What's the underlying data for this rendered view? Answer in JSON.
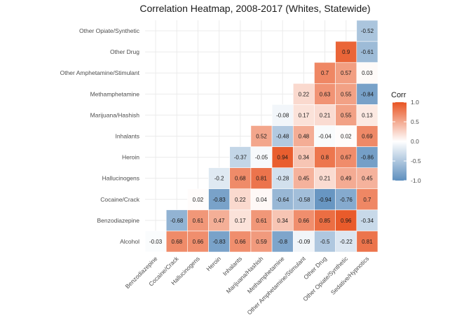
{
  "chart_data": {
    "type": "heatmap",
    "title": "Correlation Heatmap, 2008-2017 (Whites, Statewide)",
    "x_categories": [
      "Benzodiazepine",
      "Cocaine/Crack",
      "Hallucinogens",
      "Heroin",
      "Inhalants",
      "Marijuana/Hashish",
      "Methamphetamine",
      "Other Amphetamine/Stimulant",
      "Other Drug",
      "Other Opiate/Synthetic",
      "Sedative/Hypnotics"
    ],
    "y_categories": [
      "Alcohol",
      "Benzodiazepine",
      "Cocaine/Crack",
      "Hallucinogens",
      "Heroin",
      "Inhalants",
      "Marijuana/Hashish",
      "Methamphetamine",
      "Other Amphetamine/Stimulant",
      "Other Drug",
      "Other Opiate/Synthetic"
    ],
    "cells": [
      {
        "x": "Benzodiazepine",
        "y": "Alcohol",
        "value": -0.03,
        "label": "-0.03"
      },
      {
        "x": "Cocaine/Crack",
        "y": "Alcohol",
        "value": 0.68,
        "label": "0.68"
      },
      {
        "x": "Hallucinogens",
        "y": "Alcohol",
        "value": 0.66,
        "label": "0.66"
      },
      {
        "x": "Heroin",
        "y": "Alcohol",
        "value": -0.83,
        "label": "-0.83"
      },
      {
        "x": "Inhalants",
        "y": "Alcohol",
        "value": 0.66,
        "label": "0.66"
      },
      {
        "x": "Marijuana/Hashish",
        "y": "Alcohol",
        "value": 0.59,
        "label": "0.59"
      },
      {
        "x": "Methamphetamine",
        "y": "Alcohol",
        "value": -0.8,
        "label": "-0.8"
      },
      {
        "x": "Other Amphetamine/Stimulant",
        "y": "Alcohol",
        "value": -0.09,
        "label": "-0.09"
      },
      {
        "x": "Other Drug",
        "y": "Alcohol",
        "value": -0.5,
        "label": "-0.5"
      },
      {
        "x": "Other Opiate/Synthetic",
        "y": "Alcohol",
        "value": -0.22,
        "label": "-0.22"
      },
      {
        "x": "Sedative/Hypnotics",
        "y": "Alcohol",
        "value": 0.81,
        "label": "0.81"
      },
      {
        "x": "Cocaine/Crack",
        "y": "Benzodiazepine",
        "value": -0.68,
        "label": "-0.68"
      },
      {
        "x": "Hallucinogens",
        "y": "Benzodiazepine",
        "value": 0.61,
        "label": "0.61"
      },
      {
        "x": "Heroin",
        "y": "Benzodiazepine",
        "value": 0.47,
        "label": "0.47"
      },
      {
        "x": "Inhalants",
        "y": "Benzodiazepine",
        "value": 0.17,
        "label": "0.17"
      },
      {
        "x": "Marijuana/Hashish",
        "y": "Benzodiazepine",
        "value": 0.61,
        "label": "0.61"
      },
      {
        "x": "Methamphetamine",
        "y": "Benzodiazepine",
        "value": 0.34,
        "label": "0.34"
      },
      {
        "x": "Other Amphetamine/Stimulant",
        "y": "Benzodiazepine",
        "value": 0.66,
        "label": "0.66"
      },
      {
        "x": "Other Drug",
        "y": "Benzodiazepine",
        "value": 0.85,
        "label": "0.85"
      },
      {
        "x": "Other Opiate/Synthetic",
        "y": "Benzodiazepine",
        "value": 0.96,
        "label": "0.96"
      },
      {
        "x": "Sedative/Hypnotics",
        "y": "Benzodiazepine",
        "value": -0.34,
        "label": "-0.34"
      },
      {
        "x": "Hallucinogens",
        "y": "Cocaine/Crack",
        "value": 0.02,
        "label": "0.02"
      },
      {
        "x": "Heroin",
        "y": "Cocaine/Crack",
        "value": -0.83,
        "label": "-0.83"
      },
      {
        "x": "Inhalants",
        "y": "Cocaine/Crack",
        "value": 0.22,
        "label": "0.22"
      },
      {
        "x": "Marijuana/Hashish",
        "y": "Cocaine/Crack",
        "value": 0.04,
        "label": "0.04"
      },
      {
        "x": "Methamphetamine",
        "y": "Cocaine/Crack",
        "value": -0.64,
        "label": "-0.64"
      },
      {
        "x": "Other Amphetamine/Stimulant",
        "y": "Cocaine/Crack",
        "value": -0.58,
        "label": "-0.58"
      },
      {
        "x": "Other Drug",
        "y": "Cocaine/Crack",
        "value": -0.94,
        "label": "-0.94"
      },
      {
        "x": "Other Opiate/Synthetic",
        "y": "Cocaine/Crack",
        "value": -0.76,
        "label": "-0.76"
      },
      {
        "x": "Sedative/Hypnotics",
        "y": "Cocaine/Crack",
        "value": 0.7,
        "label": "0.7"
      },
      {
        "x": "Heroin",
        "y": "Hallucinogens",
        "value": -0.2,
        "label": "-0.2"
      },
      {
        "x": "Inhalants",
        "y": "Hallucinogens",
        "value": 0.68,
        "label": "0.68"
      },
      {
        "x": "Marijuana/Hashish",
        "y": "Hallucinogens",
        "value": 0.81,
        "label": "0.81"
      },
      {
        "x": "Methamphetamine",
        "y": "Hallucinogens",
        "value": -0.28,
        "label": "-0.28"
      },
      {
        "x": "Other Amphetamine/Stimulant",
        "y": "Hallucinogens",
        "value": 0.45,
        "label": "0.45"
      },
      {
        "x": "Other Drug",
        "y": "Hallucinogens",
        "value": 0.21,
        "label": "0.21"
      },
      {
        "x": "Other Opiate/Synthetic",
        "y": "Hallucinogens",
        "value": 0.49,
        "label": "0.49"
      },
      {
        "x": "Sedative/Hypnotics",
        "y": "Hallucinogens",
        "value": 0.45,
        "label": "0.45"
      },
      {
        "x": "Inhalants",
        "y": "Heroin",
        "value": -0.37,
        "label": "-0.37"
      },
      {
        "x": "Marijuana/Hashish",
        "y": "Heroin",
        "value": -0.05,
        "label": "-0.05"
      },
      {
        "x": "Methamphetamine",
        "y": "Heroin",
        "value": 0.94,
        "label": "0.94"
      },
      {
        "x": "Other Amphetamine/Stimulant",
        "y": "Heroin",
        "value": 0.34,
        "label": "0.34"
      },
      {
        "x": "Other Drug",
        "y": "Heroin",
        "value": 0.8,
        "label": "0.8"
      },
      {
        "x": "Other Opiate/Synthetic",
        "y": "Heroin",
        "value": 0.67,
        "label": "0.67"
      },
      {
        "x": "Sedative/Hypnotics",
        "y": "Heroin",
        "value": -0.86,
        "label": "-0.86"
      },
      {
        "x": "Marijuana/Hashish",
        "y": "Inhalants",
        "value": 0.52,
        "label": "0.52"
      },
      {
        "x": "Methamphetamine",
        "y": "Inhalants",
        "value": -0.48,
        "label": "-0.48"
      },
      {
        "x": "Other Amphetamine/Stimulant",
        "y": "Inhalants",
        "value": 0.48,
        "label": "0.48"
      },
      {
        "x": "Other Drug",
        "y": "Inhalants",
        "value": -0.04,
        "label": "-0.04"
      },
      {
        "x": "Other Opiate/Synthetic",
        "y": "Inhalants",
        "value": 0.02,
        "label": "0.02"
      },
      {
        "x": "Sedative/Hypnotics",
        "y": "Inhalants",
        "value": 0.69,
        "label": "0.69"
      },
      {
        "x": "Methamphetamine",
        "y": "Marijuana/Hashish",
        "value": -0.08,
        "label": "-0.08"
      },
      {
        "x": "Other Amphetamine/Stimulant",
        "y": "Marijuana/Hashish",
        "value": 0.17,
        "label": "0.17"
      },
      {
        "x": "Other Drug",
        "y": "Marijuana/Hashish",
        "value": 0.21,
        "label": "0.21"
      },
      {
        "x": "Other Opiate/Synthetic",
        "y": "Marijuana/Hashish",
        "value": 0.55,
        "label": "0.55"
      },
      {
        "x": "Sedative/Hypnotics",
        "y": "Marijuana/Hashish",
        "value": 0.13,
        "label": "0.13"
      },
      {
        "x": "Other Amphetamine/Stimulant",
        "y": "Methamphetamine",
        "value": 0.22,
        "label": "0.22"
      },
      {
        "x": "Other Drug",
        "y": "Methamphetamine",
        "value": 0.63,
        "label": "0.63"
      },
      {
        "x": "Other Opiate/Synthetic",
        "y": "Methamphetamine",
        "value": 0.55,
        "label": "0.55"
      },
      {
        "x": "Sedative/Hypnotics",
        "y": "Methamphetamine",
        "value": -0.84,
        "label": "-0.84"
      },
      {
        "x": "Other Drug",
        "y": "Other Amphetamine/Stimulant",
        "value": 0.7,
        "label": "0.7"
      },
      {
        "x": "Other Opiate/Synthetic",
        "y": "Other Amphetamine/Stimulant",
        "value": 0.57,
        "label": "0.57"
      },
      {
        "x": "Sedative/Hypnotics",
        "y": "Other Amphetamine/Stimulant",
        "value": 0.03,
        "label": "0.03"
      },
      {
        "x": "Other Opiate/Synthetic",
        "y": "Other Drug",
        "value": 0.9,
        "label": "0.9"
      },
      {
        "x": "Sedative/Hypnotics",
        "y": "Other Drug",
        "value": -0.61,
        "label": "-0.61"
      },
      {
        "x": "Sedative/Hypnotics",
        "y": "Other Opiate/Synthetic",
        "value": -0.52,
        "label": "-0.52"
      }
    ],
    "legend": {
      "title": "Corr",
      "placement": "right",
      "ticks": [
        1.0,
        0.5,
        0.0,
        -0.5,
        -1.0
      ],
      "tick_labels": [
        "1.0",
        "0.5",
        "0.0",
        "-0.5",
        "-1.0"
      ],
      "range": [
        -1,
        1
      ]
    },
    "colors": {
      "low": "#5e8fbe",
      "mid": "#ffffff",
      "high": "#e85422",
      "grid": "#ebebeb"
    },
    "grid": true
  }
}
